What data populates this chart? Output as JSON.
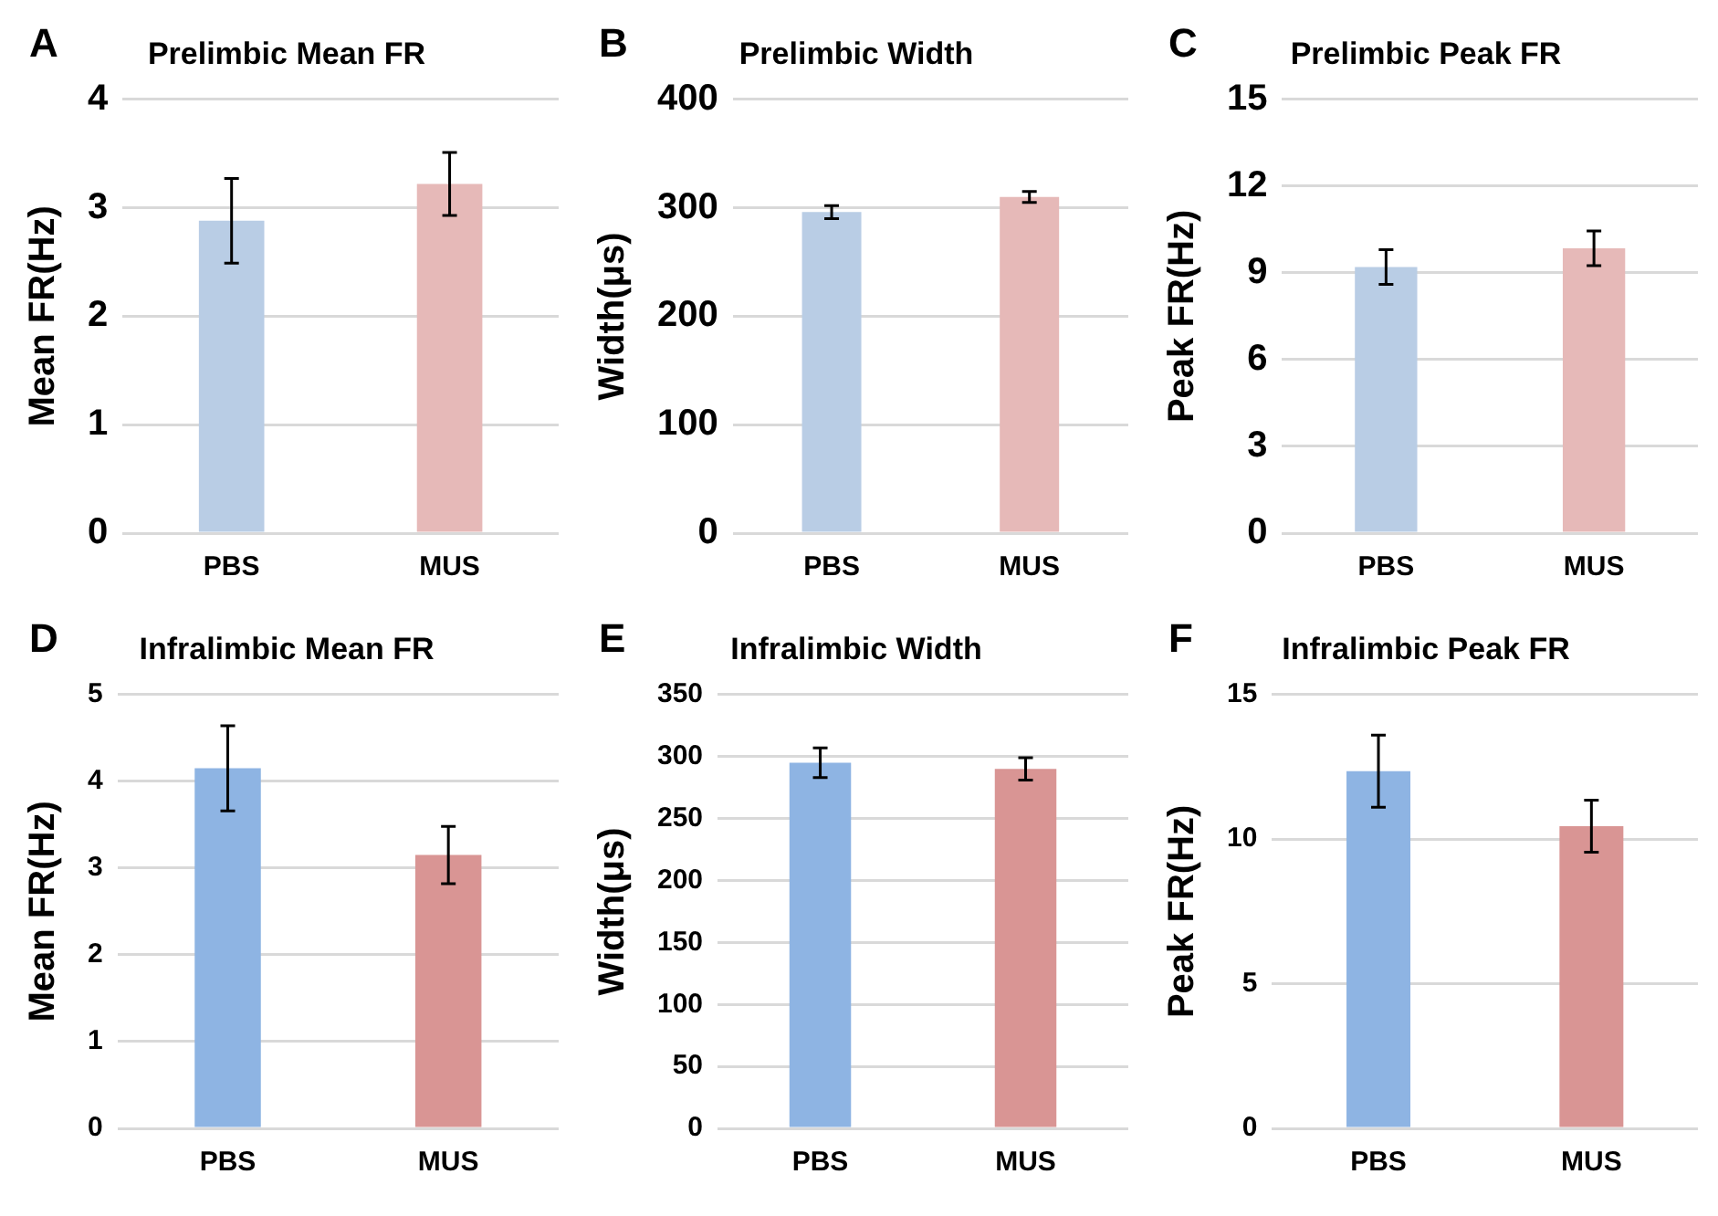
{
  "chart_data": [
    {
      "type": "bar",
      "title": "Prelimbic Mean FR",
      "ylabel": "Mean FR(Hz)",
      "categories": [
        "PBS",
        "MUS"
      ],
      "values": [
        2.88,
        3.22
      ],
      "errors": [
        0.39,
        0.29
      ],
      "colors": [
        "#b9cde5",
        "#e6b9b8"
      ],
      "ylim": [
        0,
        4
      ],
      "yticks": [
        0,
        1,
        2,
        3,
        4
      ],
      "grid": "y",
      "annotations": [
        "A"
      ]
    },
    {
      "type": "bar",
      "title": "Prelimbic Width",
      "ylabel": "Width(μs)",
      "categories": [
        "PBS",
        "MUS"
      ],
      "values": [
        296,
        310
      ],
      "errors": [
        6,
        5
      ],
      "colors": [
        "#b9cde5",
        "#e6b9b8"
      ],
      "ylim": [
        0,
        400
      ],
      "yticks": [
        0,
        100,
        200,
        300,
        400
      ],
      "grid": "y",
      "annotations": [
        "B"
      ]
    },
    {
      "type": "bar",
      "title": "Prelimbic Peak FR",
      "ylabel": "Peak FR(Hz)",
      "categories": [
        "PBS",
        "MUS"
      ],
      "values": [
        9.2,
        9.85
      ],
      "errors": [
        0.6,
        0.6
      ],
      "colors": [
        "#b9cde5",
        "#e6b9b8"
      ],
      "ylim": [
        0,
        15
      ],
      "yticks": [
        0,
        3,
        6,
        9,
        12,
        15
      ],
      "grid": "y",
      "annotations": [
        "C"
      ]
    },
    {
      "type": "bar",
      "title": "Infralimbic Mean FR",
      "ylabel": "Mean FR(Hz)",
      "categories": [
        "PBS",
        "MUS"
      ],
      "values": [
        4.15,
        3.15
      ],
      "errors": [
        0.49,
        0.33
      ],
      "colors": [
        "#8eb4e3",
        "#d99594"
      ],
      "ylim": [
        0,
        5
      ],
      "yticks": [
        0,
        1,
        2,
        3,
        4,
        5
      ],
      "grid": "y",
      "annotations": [
        "D"
      ]
    },
    {
      "type": "bar",
      "title": "Infralimbic Width",
      "ylabel": "Width(μs)",
      "categories": [
        "PBS",
        "MUS"
      ],
      "values": [
        295,
        290
      ],
      "errors": [
        12,
        9
      ],
      "colors": [
        "#8eb4e3",
        "#d99594"
      ],
      "ylim": [
        0,
        350
      ],
      "yticks": [
        0,
        50,
        100,
        150,
        200,
        250,
        300,
        350
      ],
      "grid": "y",
      "annotations": [
        "E"
      ]
    },
    {
      "type": "bar",
      "title": "Infralimbic Peak FR",
      "ylabel": "Peak FR(Hz)",
      "categories": [
        "PBS",
        "MUS"
      ],
      "values": [
        12.35,
        10.45
      ],
      "errors": [
        1.25,
        0.9
      ],
      "colors": [
        "#8eb4e3",
        "#d99594"
      ],
      "ylim": [
        0,
        15
      ],
      "yticks": [
        0,
        5,
        10,
        15
      ],
      "grid": "y",
      "annotations": [
        "F"
      ]
    }
  ]
}
